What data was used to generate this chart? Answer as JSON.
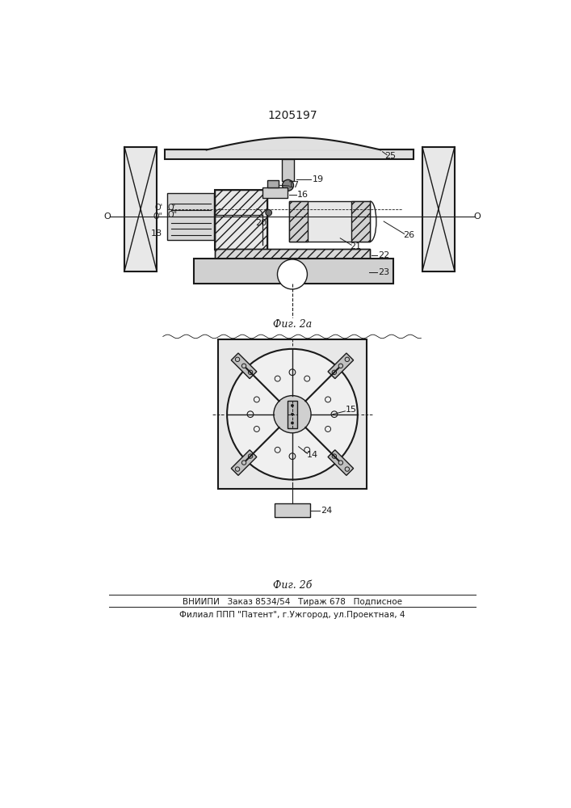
{
  "title": "1205197",
  "fig2a_label": "Фиг. 2а",
  "fig2b_label": "Фиг. 2б",
  "footer_line1": "ВНИИПИ   Заказ 8534/54   Тираж 678   Подписное",
  "footer_line2": "Филиал ППП \"Патент\", г.Ужгород, ул.Проектная, 4",
  "bg_color": "#ffffff",
  "line_color": "#1a1a1a"
}
